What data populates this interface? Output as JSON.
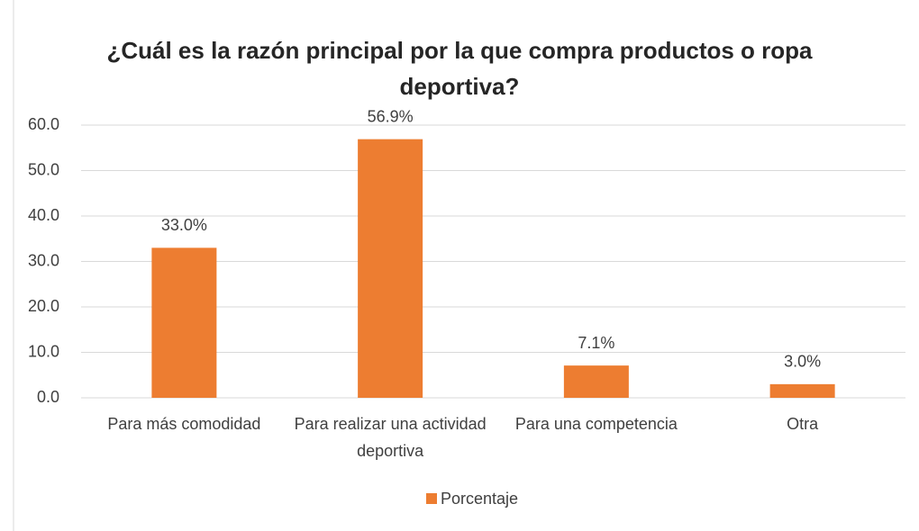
{
  "chart_data": {
    "type": "bar",
    "title": "¿Cuál es la razón principal por la que compra productos o ropa deportiva?",
    "categories": [
      "Para más comodidad",
      "Para realizar una actividad deportiva",
      "Para una competencia",
      "Otra"
    ],
    "series": [
      {
        "name": "Porcentaje",
        "color": "#ed7d31",
        "values": [
          33.0,
          56.9,
          7.1,
          3.0
        ],
        "value_labels": [
          "33.0%",
          "56.9%",
          "7.1%",
          "3.0%"
        ]
      }
    ],
    "ylim": [
      0,
      60
    ],
    "yticks": [
      {
        "value": 0,
        "label": "0.0"
      },
      {
        "value": 10,
        "label": "10.0"
      },
      {
        "value": 20,
        "label": "20.0"
      },
      {
        "value": 30,
        "label": "30.0"
      },
      {
        "value": 40,
        "label": "40.0"
      },
      {
        "value": 50,
        "label": "50.0"
      },
      {
        "value": 60,
        "label": "60.0"
      }
    ],
    "grid": true,
    "legend": "bottom"
  }
}
